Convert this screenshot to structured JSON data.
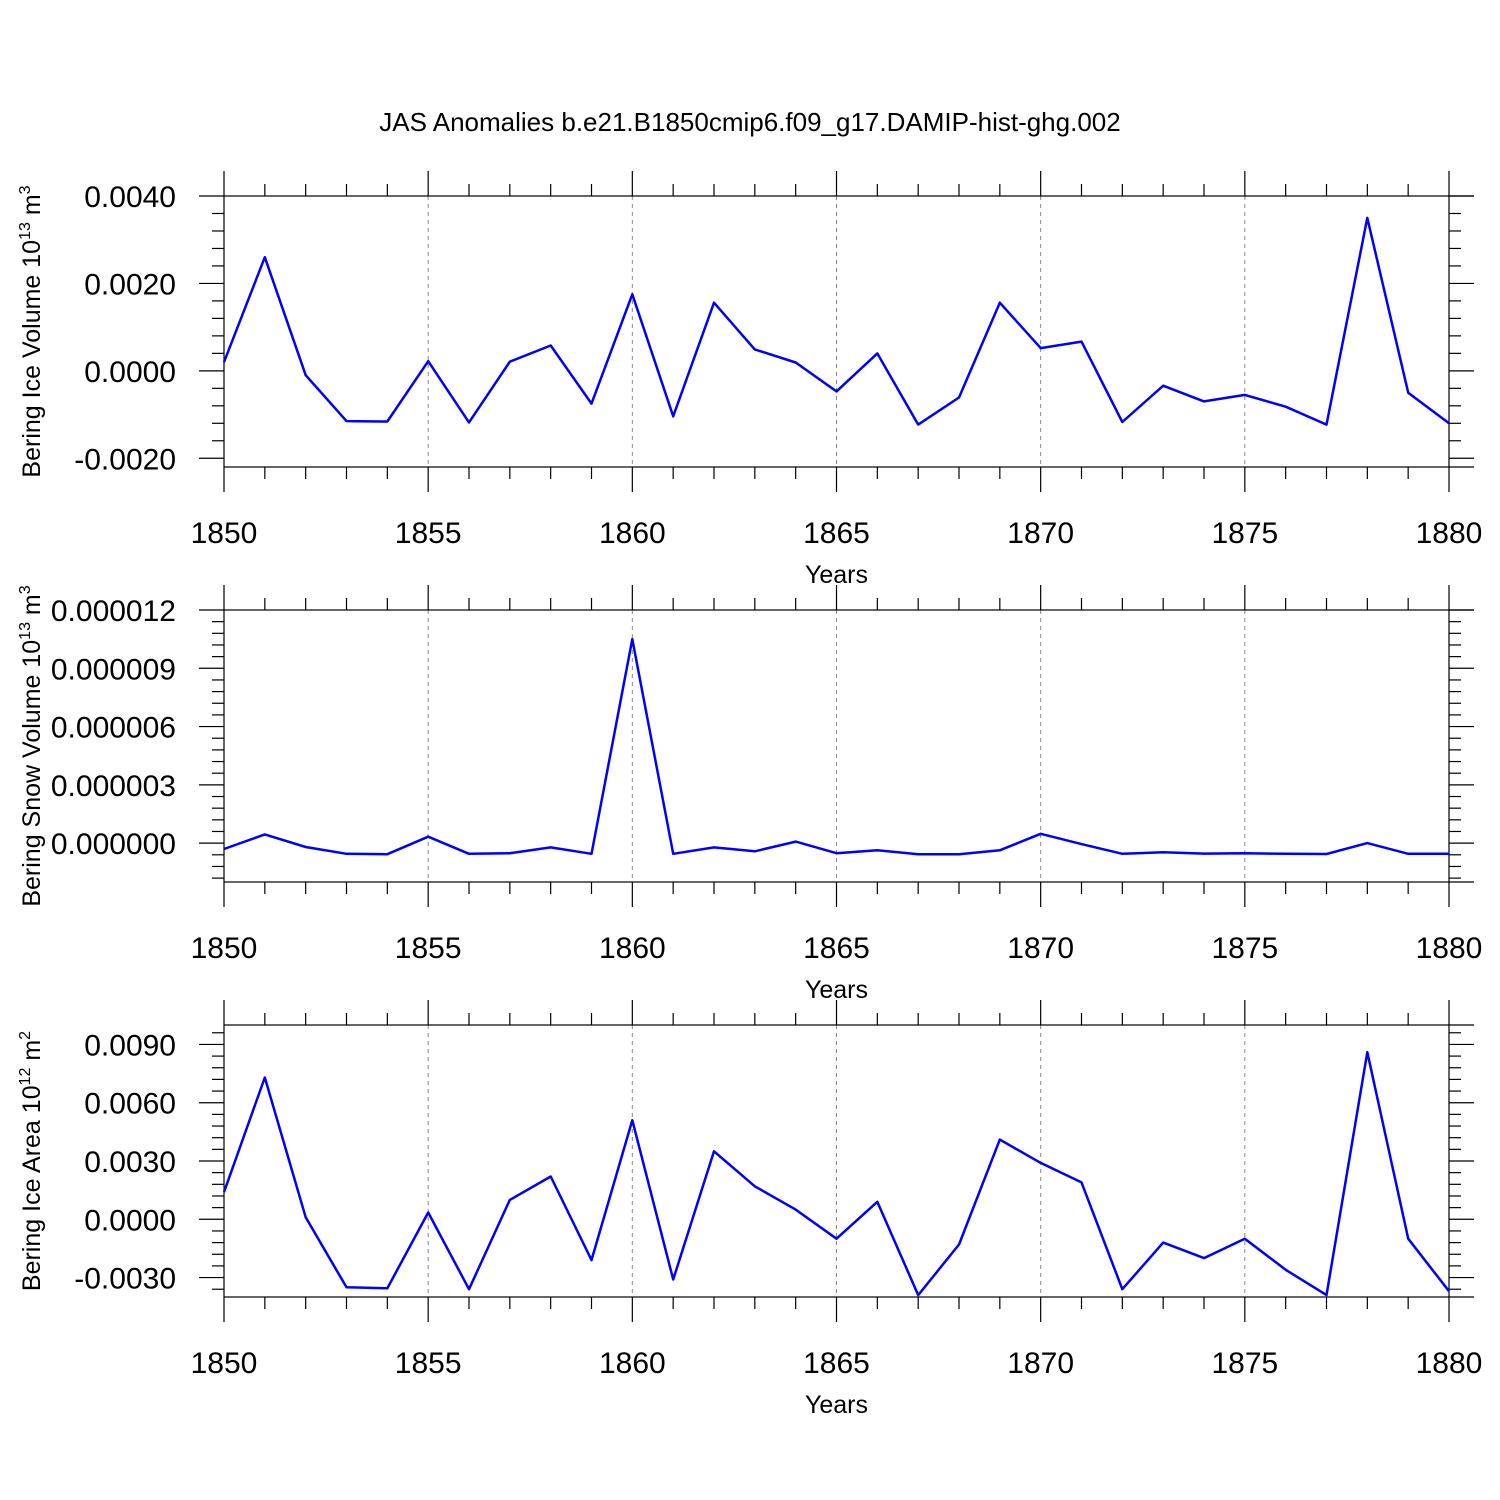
{
  "title": "JAS Anomalies b.e21.B1850cmip6.f09_g17.DAMIP-hist-ghg.002",
  "colors": {
    "line": "#0000ff",
    "grid": "#888888",
    "axis": "#000000"
  },
  "chart_data": [
    {
      "type": "line",
      "xlabel": "Years",
      "ylabel": "Bering Ice Volume 10",
      "ylabel_exp": "13",
      "ylabel_unit": " m",
      "ylabel_unit_exp": "3",
      "xlim": [
        1850,
        1880
      ],
      "ylim": [
        -0.0022,
        0.004
      ],
      "x_ticks": [
        1850,
        1855,
        1860,
        1865,
        1870,
        1875,
        1880
      ],
      "y_ticks": [
        -0.002,
        0.0,
        0.002,
        0.004
      ],
      "y_tick_labels": [
        "-0.0020",
        "0.0000",
        "0.0020",
        "0.0040"
      ],
      "grid": "vertical dashed at major x ticks",
      "x": [
        1850,
        1851,
        1852,
        1853,
        1854,
        1855,
        1856,
        1857,
        1858,
        1859,
        1860,
        1861,
        1862,
        1863,
        1864,
        1865,
        1866,
        1867,
        1868,
        1869,
        1870,
        1871,
        1872,
        1873,
        1874,
        1875,
        1876,
        1877,
        1878,
        1879,
        1880
      ],
      "values": [
        0.0002,
        0.0026,
        -0.0001,
        -0.00115,
        -0.00116,
        0.00022,
        -0.00118,
        0.00021,
        0.00058,
        -0.00075,
        0.00175,
        -0.00104,
        0.00156,
        0.00049,
        0.00019,
        -0.00047,
        0.0004,
        -0.00123,
        -0.00061,
        0.00156,
        0.00052,
        0.00067,
        -0.00117,
        -0.00034,
        -0.0007,
        -0.00055,
        -0.00082,
        -0.00123,
        0.0035,
        -0.0005,
        -0.0012
      ]
    },
    {
      "type": "line",
      "xlabel": "Years",
      "ylabel": "Bering Snow Volume 10",
      "ylabel_exp": "13",
      "ylabel_unit": " m",
      "ylabel_unit_exp": "3",
      "xlim": [
        1850,
        1880
      ],
      "ylim": [
        -2e-06,
        1.2e-05
      ],
      "x_ticks": [
        1850,
        1855,
        1860,
        1865,
        1870,
        1875,
        1880
      ],
      "y_ticks": [
        0.0,
        3e-06,
        6e-06,
        9e-06,
        1.2e-05
      ],
      "y_tick_labels": [
        "0.000000",
        "0.000003",
        "0.000006",
        "0.000009",
        "0.000012"
      ],
      "grid": "vertical dashed at major x ticks",
      "x": [
        1850,
        1851,
        1852,
        1853,
        1854,
        1855,
        1856,
        1857,
        1858,
        1859,
        1860,
        1861,
        1862,
        1863,
        1864,
        1865,
        1866,
        1867,
        1868,
        1869,
        1870,
        1871,
        1872,
        1873,
        1874,
        1875,
        1876,
        1877,
        1878,
        1879,
        1880
      ],
      "values": [
        -3e-07,
        4.5e-07,
        -2e-07,
        -5.5e-07,
        -5.7e-07,
        3.3e-07,
        -5.5e-07,
        -5.2e-07,
        -2.2e-07,
        -5.5e-07,
        1.05e-05,
        -5.5e-07,
        -2.2e-07,
        -4.2e-07,
        8e-08,
        -5.2e-07,
        -3.7e-07,
        -5.7e-07,
        -5.7e-07,
        -3.7e-07,
        4.8e-07,
        -5e-08,
        -5.5e-07,
        -4.7e-07,
        -5.4e-07,
        -5.2e-07,
        -5.5e-07,
        -5.6e-07,
        0.0,
        -5.5e-07,
        -5.5e-07
      ]
    },
    {
      "type": "line",
      "xlabel": "Years",
      "ylabel": "Bering Ice Area 10",
      "ylabel_exp": "12",
      "ylabel_unit": " m",
      "ylabel_unit_exp": "2",
      "xlim": [
        1850,
        1880
      ],
      "ylim": [
        -0.004,
        0.01
      ],
      "x_ticks": [
        1850,
        1855,
        1860,
        1865,
        1870,
        1875,
        1880
      ],
      "y_ticks": [
        -0.003,
        0.0,
        0.003,
        0.006,
        0.009
      ],
      "y_tick_labels": [
        "-0.0030",
        "0.0000",
        "0.0030",
        "0.0060",
        "0.0090"
      ],
      "grid": "vertical dashed at major x ticks",
      "x": [
        1850,
        1851,
        1852,
        1853,
        1854,
        1855,
        1856,
        1857,
        1858,
        1859,
        1860,
        1861,
        1862,
        1863,
        1864,
        1865,
        1866,
        1867,
        1868,
        1869,
        1870,
        1871,
        1872,
        1873,
        1874,
        1875,
        1876,
        1877,
        1878,
        1879,
        1880
      ],
      "values": [
        0.0014,
        0.0073,
        0.0001,
        -0.0035,
        -0.00355,
        0.00035,
        -0.0036,
        0.001,
        0.0022,
        -0.0021,
        0.0051,
        -0.0031,
        0.0035,
        0.0017,
        0.0005,
        -0.001,
        0.0009,
        -0.0039,
        -0.0013,
        0.0041,
        0.0029,
        0.0019,
        -0.0036,
        -0.0012,
        -0.002,
        -0.001,
        -0.0026,
        -0.0039,
        0.0086,
        -0.001,
        -0.0037
      ]
    }
  ]
}
